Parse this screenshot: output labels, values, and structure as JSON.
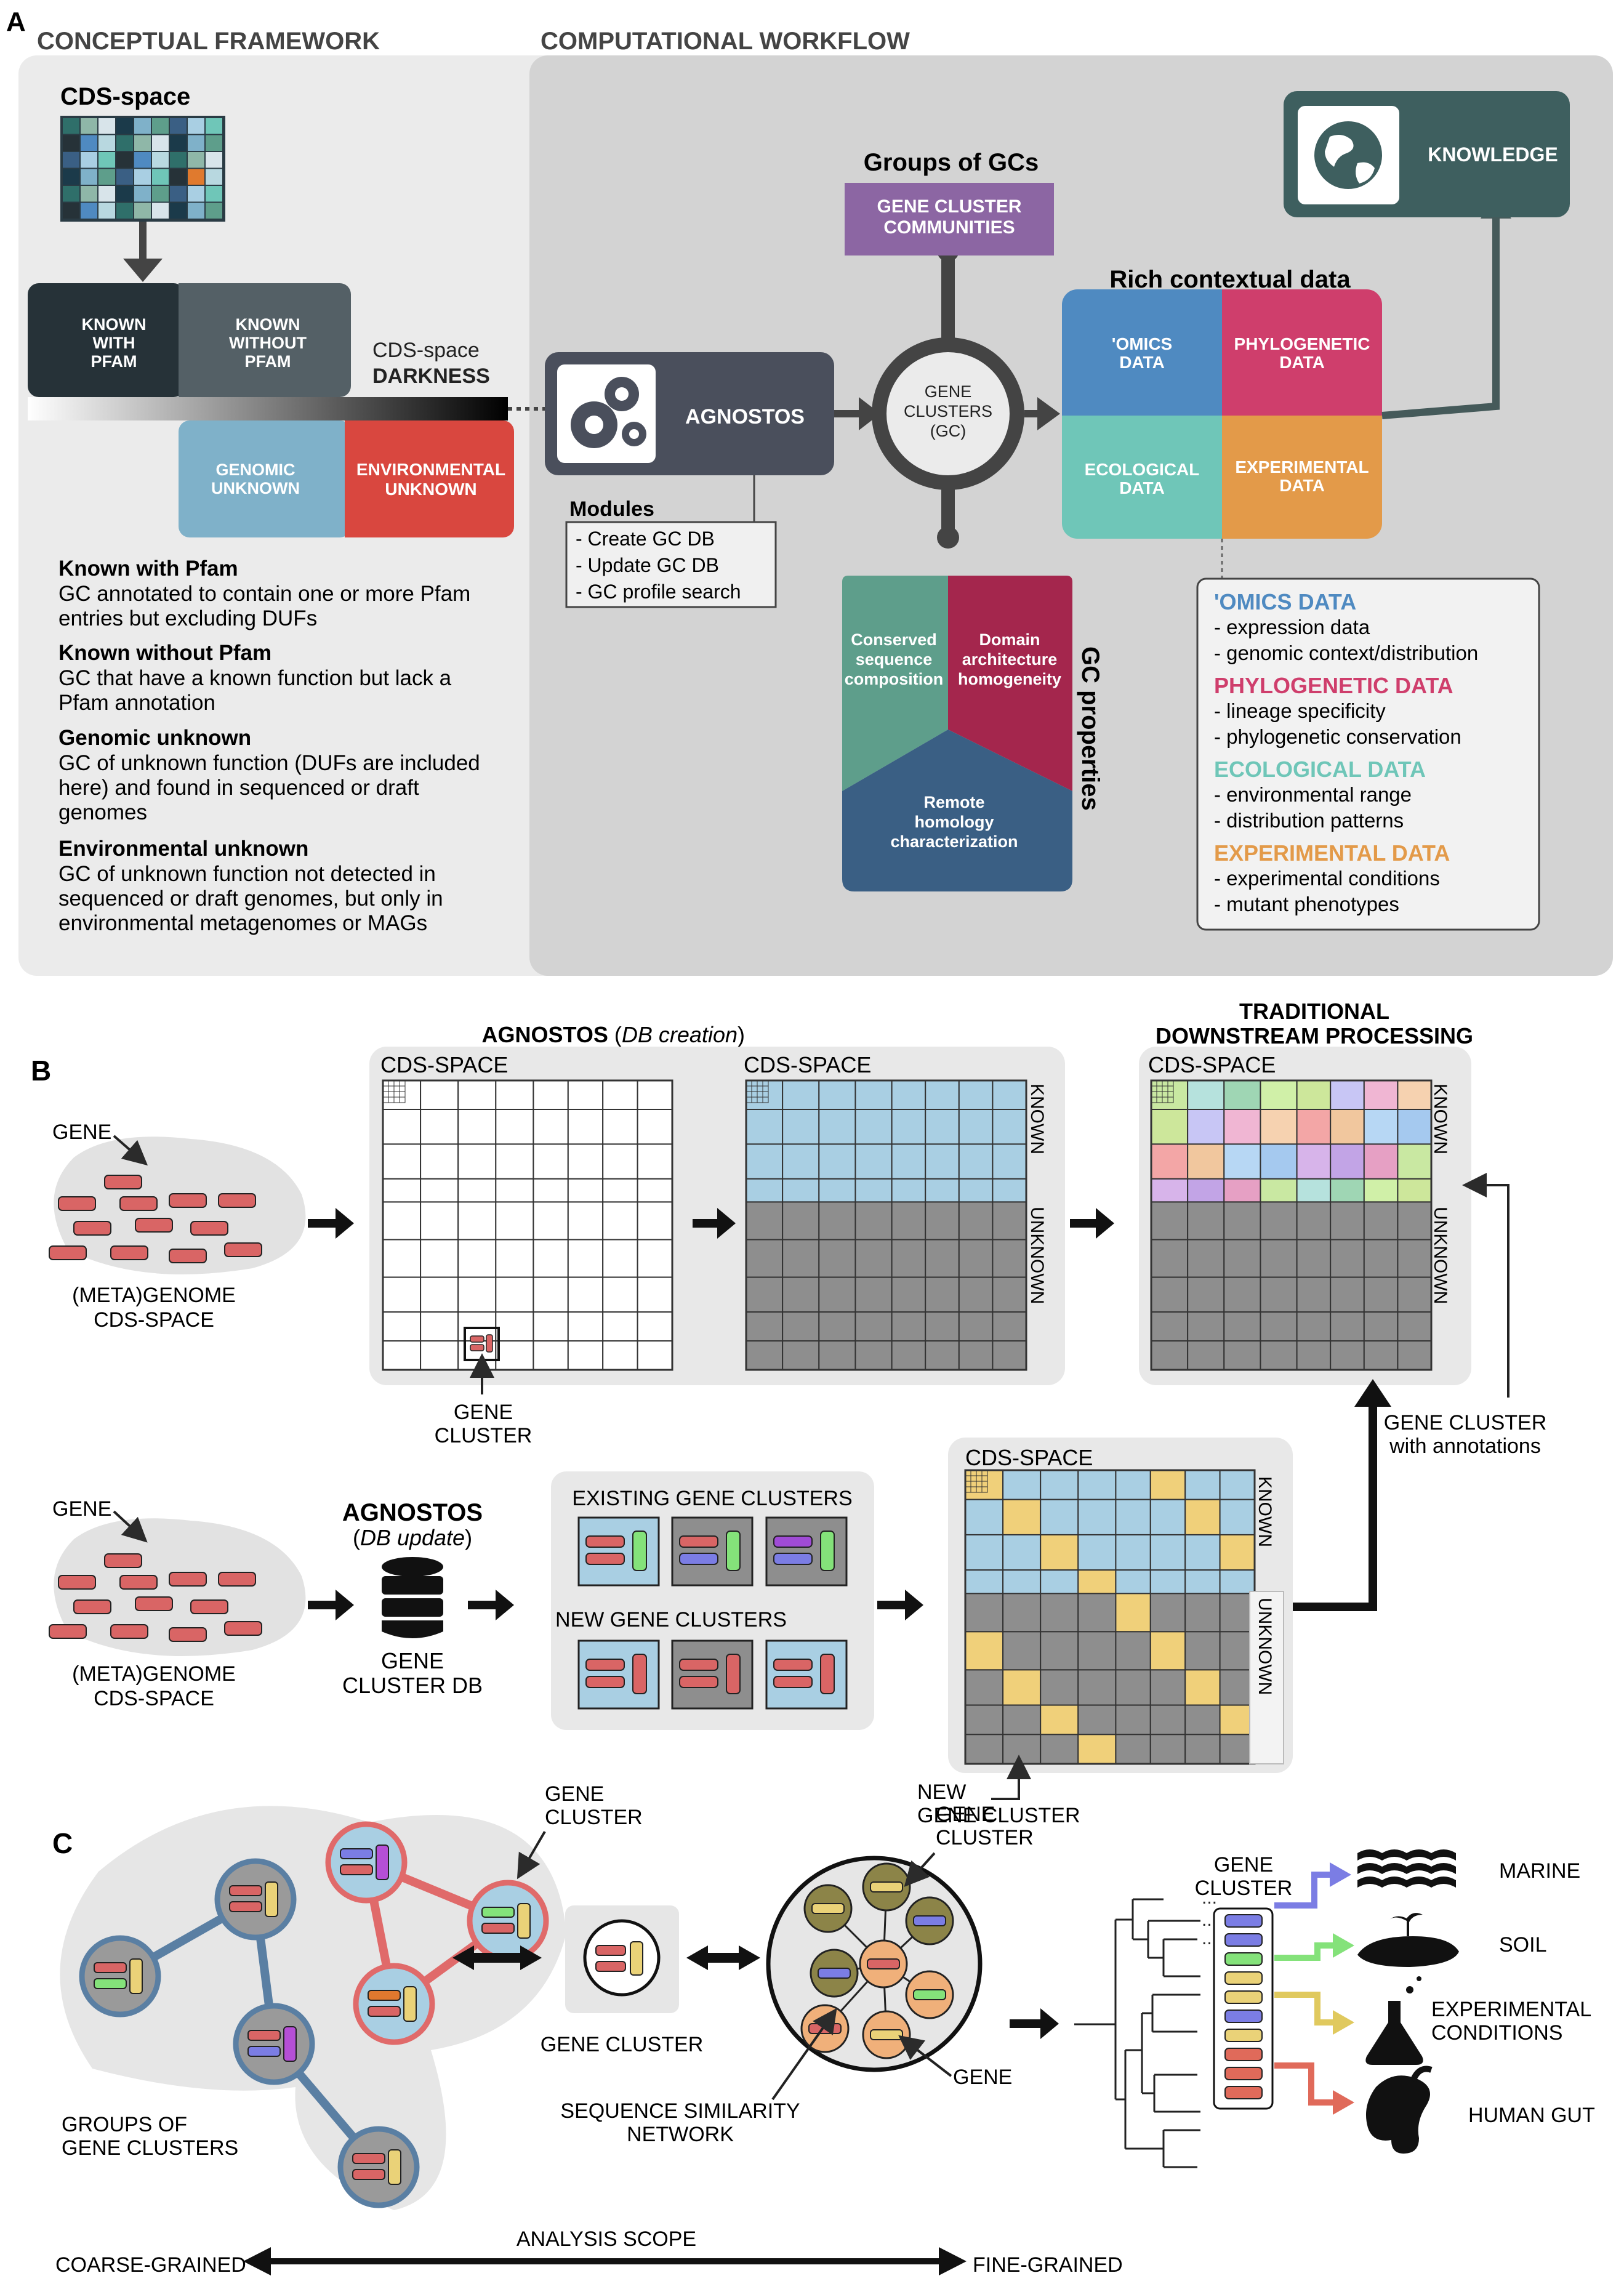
{
  "panels": {
    "a": "A",
    "b": "B",
    "c": "C"
  },
  "a": {
    "conceptual_title": "CONCEPTUAL FRAMEWORK",
    "workflow_title": "COMPUTATIONAL WORKFLOW",
    "cds_space": "CDS-space",
    "darkness_line1": "CDS-space",
    "darkness_line2": "DARKNESS",
    "known_with_pfam": [
      "KNOWN",
      "WITH",
      "PFAM"
    ],
    "known_without_pfam": [
      "KNOWN",
      "WITHOUT",
      "PFAM"
    ],
    "genomic_unknown": [
      "GENOMIC",
      "UNKNOWN"
    ],
    "environmental_unknown": [
      "ENVIRONMENTAL",
      "UNKNOWN"
    ],
    "definitions": [
      {
        "term": "Known with Pfam",
        "lines": [
          "GC annotated to contain one or more Pfam",
          "entries but excluding DUFs"
        ]
      },
      {
        "term": "Known without Pfam",
        "lines": [
          "GC that have a known function but lack a",
          "Pfam annotation"
        ]
      },
      {
        "term": "Genomic unknown",
        "lines": [
          "GC of unknown function (DUFs are included",
          "here) and found in sequenced or draft",
          "genomes"
        ]
      },
      {
        "term": "Environmental unknown",
        "lines": [
          "GC of unknown function not detected in",
          "sequenced or draft genomes, but only in",
          "environmental metagenomes or MAGs"
        ]
      }
    ],
    "agnostos": "AGNOSTOS",
    "modules_title": "Modules",
    "modules": [
      "- Create GC DB",
      "- Update GC DB",
      "- GC profile search"
    ],
    "groups_title": "Groups of GCs",
    "gcc": [
      "GENE CLUSTER",
      "COMMUNITIES"
    ],
    "gc_circle": [
      "GENE",
      "CLUSTERS",
      "(GC)"
    ],
    "gc_properties": "GC properties",
    "prop_conserved": [
      "Conserved",
      "sequence",
      "composition"
    ],
    "prop_domain": [
      "Domain",
      "architecture",
      "homogeneity"
    ],
    "prop_remote": [
      "Remote",
      "homology",
      "characterization"
    ],
    "rich_title": "Rich contextual data",
    "omics": [
      "'OMICS",
      "DATA"
    ],
    "phylo": [
      "PHYLOGENETIC",
      "DATA"
    ],
    "eco": [
      "ECOLOGICAL",
      "DATA"
    ],
    "exp": [
      "EXPERIMENTAL",
      "DATA"
    ],
    "knowledge": "KNOWLEDGE",
    "legend": [
      {
        "head": "'OMICS DATA",
        "items": [
          "- expression data",
          "- genomic context/distribution"
        ]
      },
      {
        "head": "PHYLOGENETIC DATA",
        "items": [
          "- lineage specificity",
          "- phylogenetic conservation"
        ]
      },
      {
        "head": "ECOLOGICAL DATA",
        "items": [
          "- environmental range",
          "- distribution patterns"
        ]
      },
      {
        "head": "EXPERIMENTAL DATA",
        "items": [
          "- experimental conditions",
          "- mutant phenotypes"
        ]
      }
    ]
  },
  "b": {
    "agnostos_title": "AGNOSTOS",
    "db_creation": "DB creation",
    "traditional": [
      "TRADITIONAL",
      "DOWNSTREAM PROCESSING"
    ],
    "cds_space": "CDS-SPACE",
    "gene": "GENE",
    "meta_genome": [
      "(META)GENOME",
      "CDS-SPACE"
    ],
    "gene_cluster": [
      "GENE",
      "CLUSTER"
    ],
    "known": "KNOWN",
    "unknown": "UNKNOWN",
    "gc_with_annotations": [
      "GENE CLUSTER",
      "with annotations"
    ],
    "db_update": "DB update",
    "gene_cluster_db": [
      "GENE",
      "CLUSTER DB"
    ],
    "existing": "EXISTING GENE CLUSTERS",
    "new_gcs": "NEW GENE CLUSTERS",
    "new_gene_cluster": [
      "NEW",
      "GENE CLUSTER"
    ]
  },
  "c": {
    "gene_cluster_top": [
      "GENE",
      "CLUSTER"
    ],
    "groups": [
      "GROUPS OF",
      "GENE CLUSTERS"
    ],
    "gene_cluster_mid": "GENE CLUSTER",
    "gene_cluster_ssn": [
      "GENE",
      "CLUSTER"
    ],
    "ssn": [
      "SEQUENCE SIMILARITY",
      "NETWORK"
    ],
    "gene": "GENE",
    "gene_cluster_tree": [
      "GENE",
      "CLUSTER"
    ],
    "marine": "MARINE",
    "soil": "SOIL",
    "experimental": [
      "EXPERIMENTAL",
      "CONDITIONS"
    ],
    "human_gut": "HUMAN GUT",
    "analysis_scope": "ANALYSIS SCOPE",
    "coarse": "COARSE-GRAINED",
    "fine": "FINE-GRAINED"
  },
  "colors": {
    "known_pfam": "#263238",
    "known_nopfam": "#546066",
    "genomic_unknown": "#7fb1c9",
    "env_unknown": "#d9473f",
    "agnostos": "#4a4f5c",
    "gcc": "#8c66a3",
    "omics": "#4f8ac1",
    "phylo": "#cf3e6c",
    "eco": "#6fc6b8",
    "exp": "#e39a49",
    "knowledge": "#3e5f5f",
    "conserved": "#5e9e8b",
    "domain": "#a4264d",
    "remote": "#3a5f84",
    "known_treemap": "#a9cfe3",
    "unknown_treemap": "#8e8e8e",
    "new_gc": "#f0d07a",
    "gene": "#d96565"
  }
}
